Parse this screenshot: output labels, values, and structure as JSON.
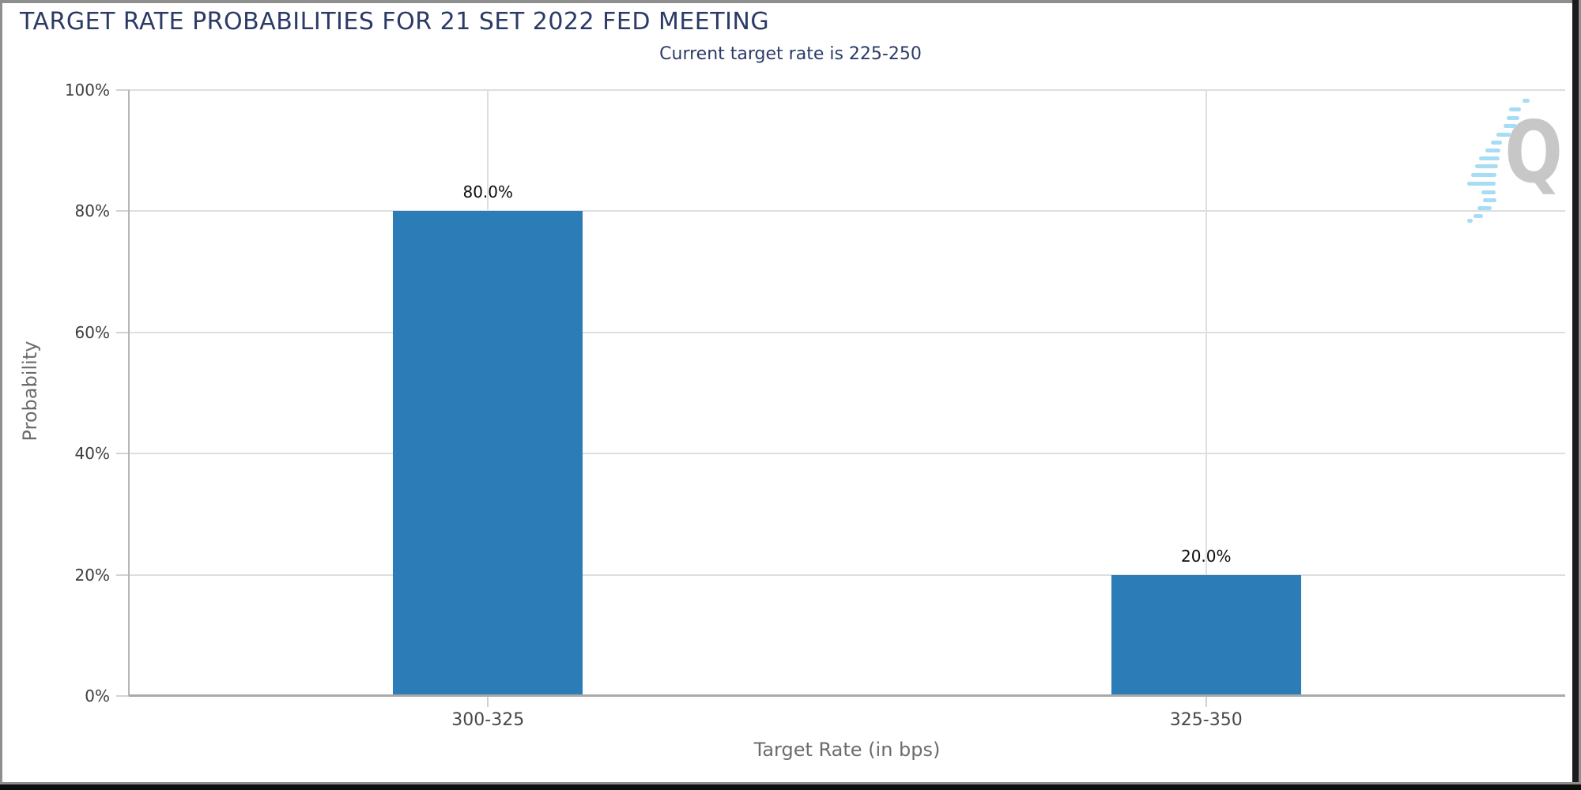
{
  "chart_data": {
    "type": "bar",
    "title": "TARGET RATE PROBABILITIES FOR 21 SET 2022 FED MEETING",
    "subtitle": "Current target rate is 225-250",
    "categories": [
      "300-325",
      "325-350"
    ],
    "values": [
      80.0,
      20.0
    ],
    "value_labels": [
      "80.0%",
      "20.0%"
    ],
    "xlabel": "Target Rate (in bps)",
    "ylabel": "Probability",
    "ylim": [
      0,
      100
    ],
    "ytick_values": [
      0,
      20,
      40,
      60,
      80,
      100
    ],
    "ytick_labels": [
      "0%",
      "20%",
      "40%",
      "60%",
      "80%",
      "100%"
    ],
    "bar_color": "#2b7cb7",
    "grid": true,
    "legend_position": "none",
    "colors": {
      "title_text": "#2b3a67",
      "axis_text": "#3d3d3d",
      "axis_title_text": "#6c6c6c",
      "gridline": "#dedede",
      "axis_line": "#a9a9a9"
    }
  },
  "logo": {
    "letter": "Q"
  }
}
